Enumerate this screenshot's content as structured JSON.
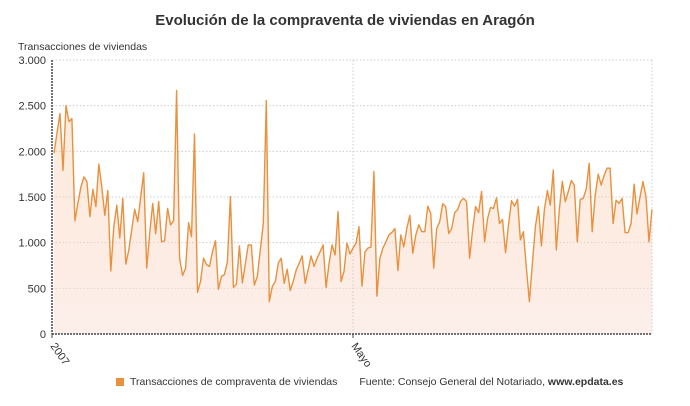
{
  "chart_data": {
    "type": "area",
    "title": "Evolución de la compraventa de viviendas en Aragón",
    "ylabel": "Transacciones de viviendas",
    "xlabel": "",
    "ylim": [
      0,
      3000
    ],
    "yticks": [
      0,
      500,
      1000,
      1500,
      2000,
      2500,
      3000
    ],
    "ytick_labels": [
      "0",
      "500",
      "1.000",
      "1.500",
      "2.000",
      "2.500",
      "3.000"
    ],
    "xtick_labels": [
      "2007",
      "Mayo"
    ],
    "grid": true,
    "legend": "bottom",
    "series": [
      {
        "name": "Transacciones de compraventa de viviendas",
        "color": "#e8913e",
        "values": [
          1980,
          2200,
          2415,
          1790,
          2500,
          2325,
          2360,
          1240,
          1430,
          1610,
          1720,
          1670,
          1285,
          1585,
          1395,
          1860,
          1610,
          1300,
          1570,
          690,
          1175,
          1410,
          1050,
          1485,
          765,
          920,
          1140,
          1365,
          1230,
          1500,
          1765,
          720,
          1100,
          1430,
          1100,
          1450,
          1010,
          1020,
          1375,
          1195,
          1240,
          2665,
          830,
          640,
          720,
          1220,
          1065,
          2190,
          455,
          575,
          830,
          760,
          740,
          900,
          1020,
          490,
          630,
          650,
          790,
          1505,
          510,
          545,
          965,
          560,
          775,
          975,
          975,
          535,
          630,
          920,
          1210,
          2555,
          355,
          520,
          575,
          775,
          830,
          555,
          710,
          475,
          575,
          700,
          775,
          855,
          555,
          700,
          855,
          740,
          830,
          900,
          975,
          510,
          775,
          975,
          865,
          1340,
          575,
          685,
          995,
          875,
          940,
          995,
          1175,
          525,
          900,
          940,
          950,
          1780,
          415,
          830,
          940,
          1010,
          1085,
          1110,
          1155,
          695,
          1085,
          955,
          1155,
          1300,
          885,
          1085,
          1195,
          1120,
          1120,
          1400,
          1320,
          720,
          1155,
          1230,
          1425,
          1395,
          1100,
          1155,
          1330,
          1360,
          1455,
          1485,
          1450,
          830,
          1140,
          1395,
          1330,
          1560,
          1010,
          1265,
          1385,
          1375,
          1490,
          1210,
          1255,
          890,
          1195,
          1460,
          1400,
          1475,
          1030,
          1120,
          720,
          355,
          775,
          1175,
          1395,
          965,
          1365,
          1570,
          1410,
          1795,
          920,
          1360,
          1670,
          1450,
          1560,
          1680,
          1630,
          1010,
          1475,
          1485,
          1585,
          1870,
          1120,
          1520,
          1750,
          1630,
          1740,
          1815,
          1815,
          1210,
          1465,
          1430,
          1485,
          1110,
          1110,
          1210,
          1640,
          1315,
          1500,
          1670,
          1500,
          1010,
          1365
        ]
      }
    ],
    "source_prefix": "Fuente: Consejo General del Notariado, ",
    "source_site": "www.epdata.es"
  }
}
